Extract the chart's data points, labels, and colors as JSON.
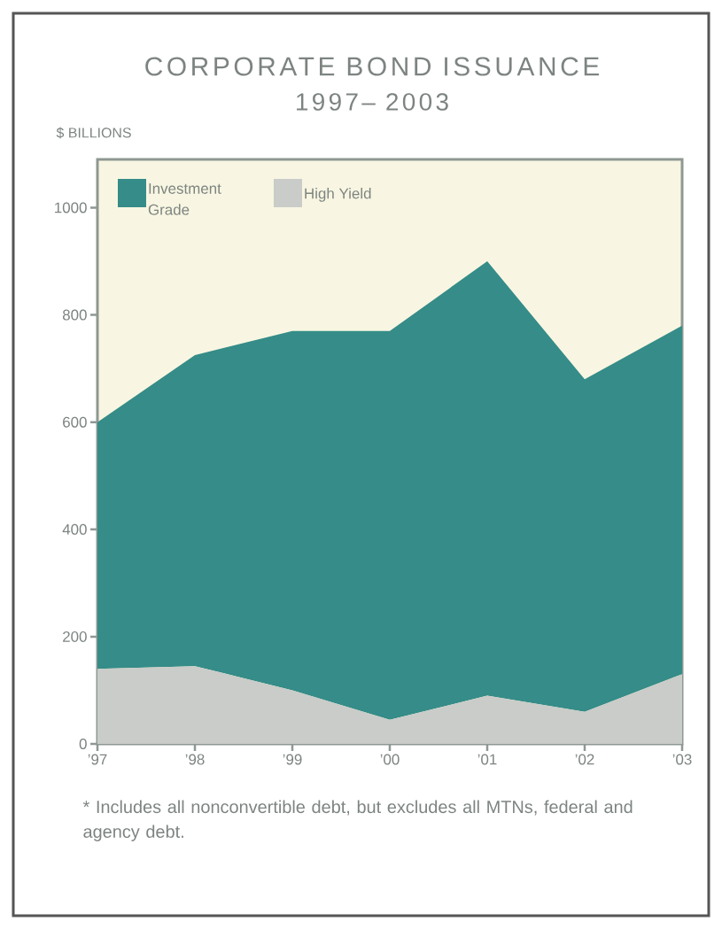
{
  "chart_data": {
    "type": "area",
    "title": "CORPORATE BOND ISSUANCE",
    "subtitle": "1997– 2003",
    "ylabel": "$ BILLIONS",
    "categories": [
      "’97",
      "’98",
      "’99",
      "’00",
      "’01",
      "’02",
      "’03"
    ],
    "series": [
      {
        "name": "High Yield",
        "color": "#c9ccc8",
        "values": [
          140,
          145,
          100,
          45,
          90,
          60,
          130
        ]
      },
      {
        "name": "Investment Grade",
        "color": "#358c88",
        "values": [
          460,
          580,
          670,
          725,
          810,
          620,
          650
        ]
      }
    ],
    "stacked": true,
    "ylim": [
      0,
      1090
    ],
    "yticks": [
      0,
      200,
      400,
      600,
      800,
      1000
    ],
    "legend": "top left",
    "annotations": [
      "* Includes all nonconvertible debt, but excludes all MTNs, federal and agency debt."
    ]
  }
}
